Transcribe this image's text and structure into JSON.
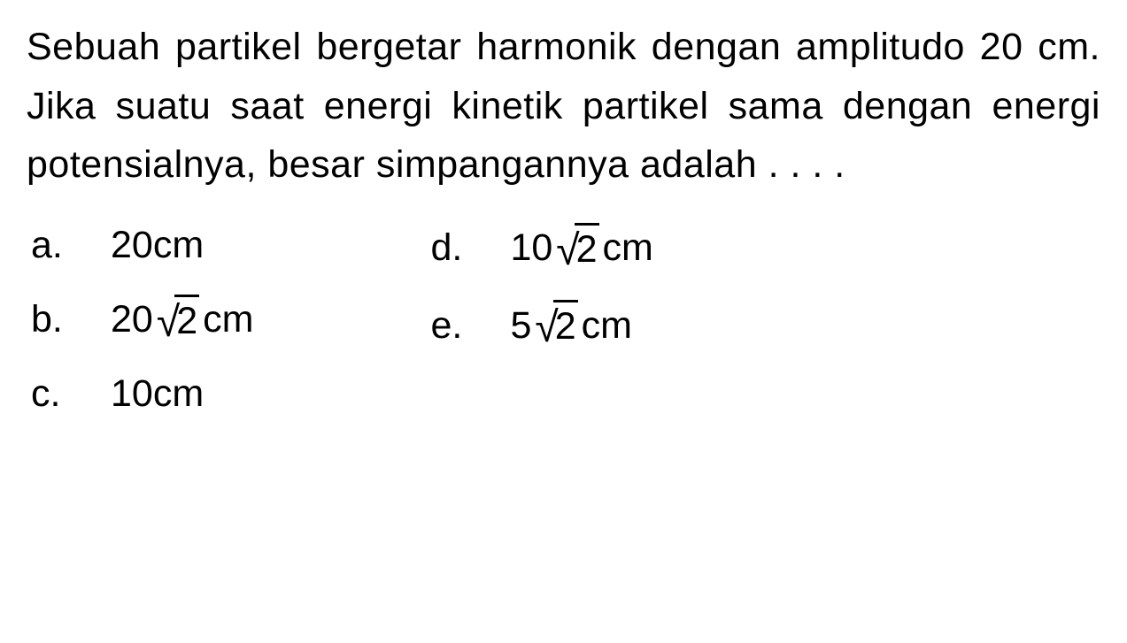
{
  "question": {
    "text": "Sebuah partikel bergetar harmonik dengan amplitudo 20 cm. Jika suatu saat energi kinetik partikel sama dengan energi potensialnya, besar simpangannya adalah . . . .",
    "font_size": 43,
    "text_color": "#000000",
    "background_color": "#ffffff"
  },
  "options": {
    "a": {
      "letter": "a.",
      "prefix": "20",
      "has_sqrt": false,
      "sqrt_value": "",
      "unit": " cm"
    },
    "b": {
      "letter": "b.",
      "prefix": "20",
      "has_sqrt": true,
      "sqrt_value": "2",
      "unit": " cm"
    },
    "c": {
      "letter": "c.",
      "prefix": "10",
      "has_sqrt": false,
      "sqrt_value": "",
      "unit": " cm"
    },
    "d": {
      "letter": "d.",
      "prefix": "10",
      "has_sqrt": true,
      "sqrt_value": "2",
      "unit": " cm"
    },
    "e": {
      "letter": "e.",
      "prefix": "5",
      "has_sqrt": true,
      "sqrt_value": "2",
      "unit": " cm"
    }
  },
  "sqrt_symbol": "√"
}
